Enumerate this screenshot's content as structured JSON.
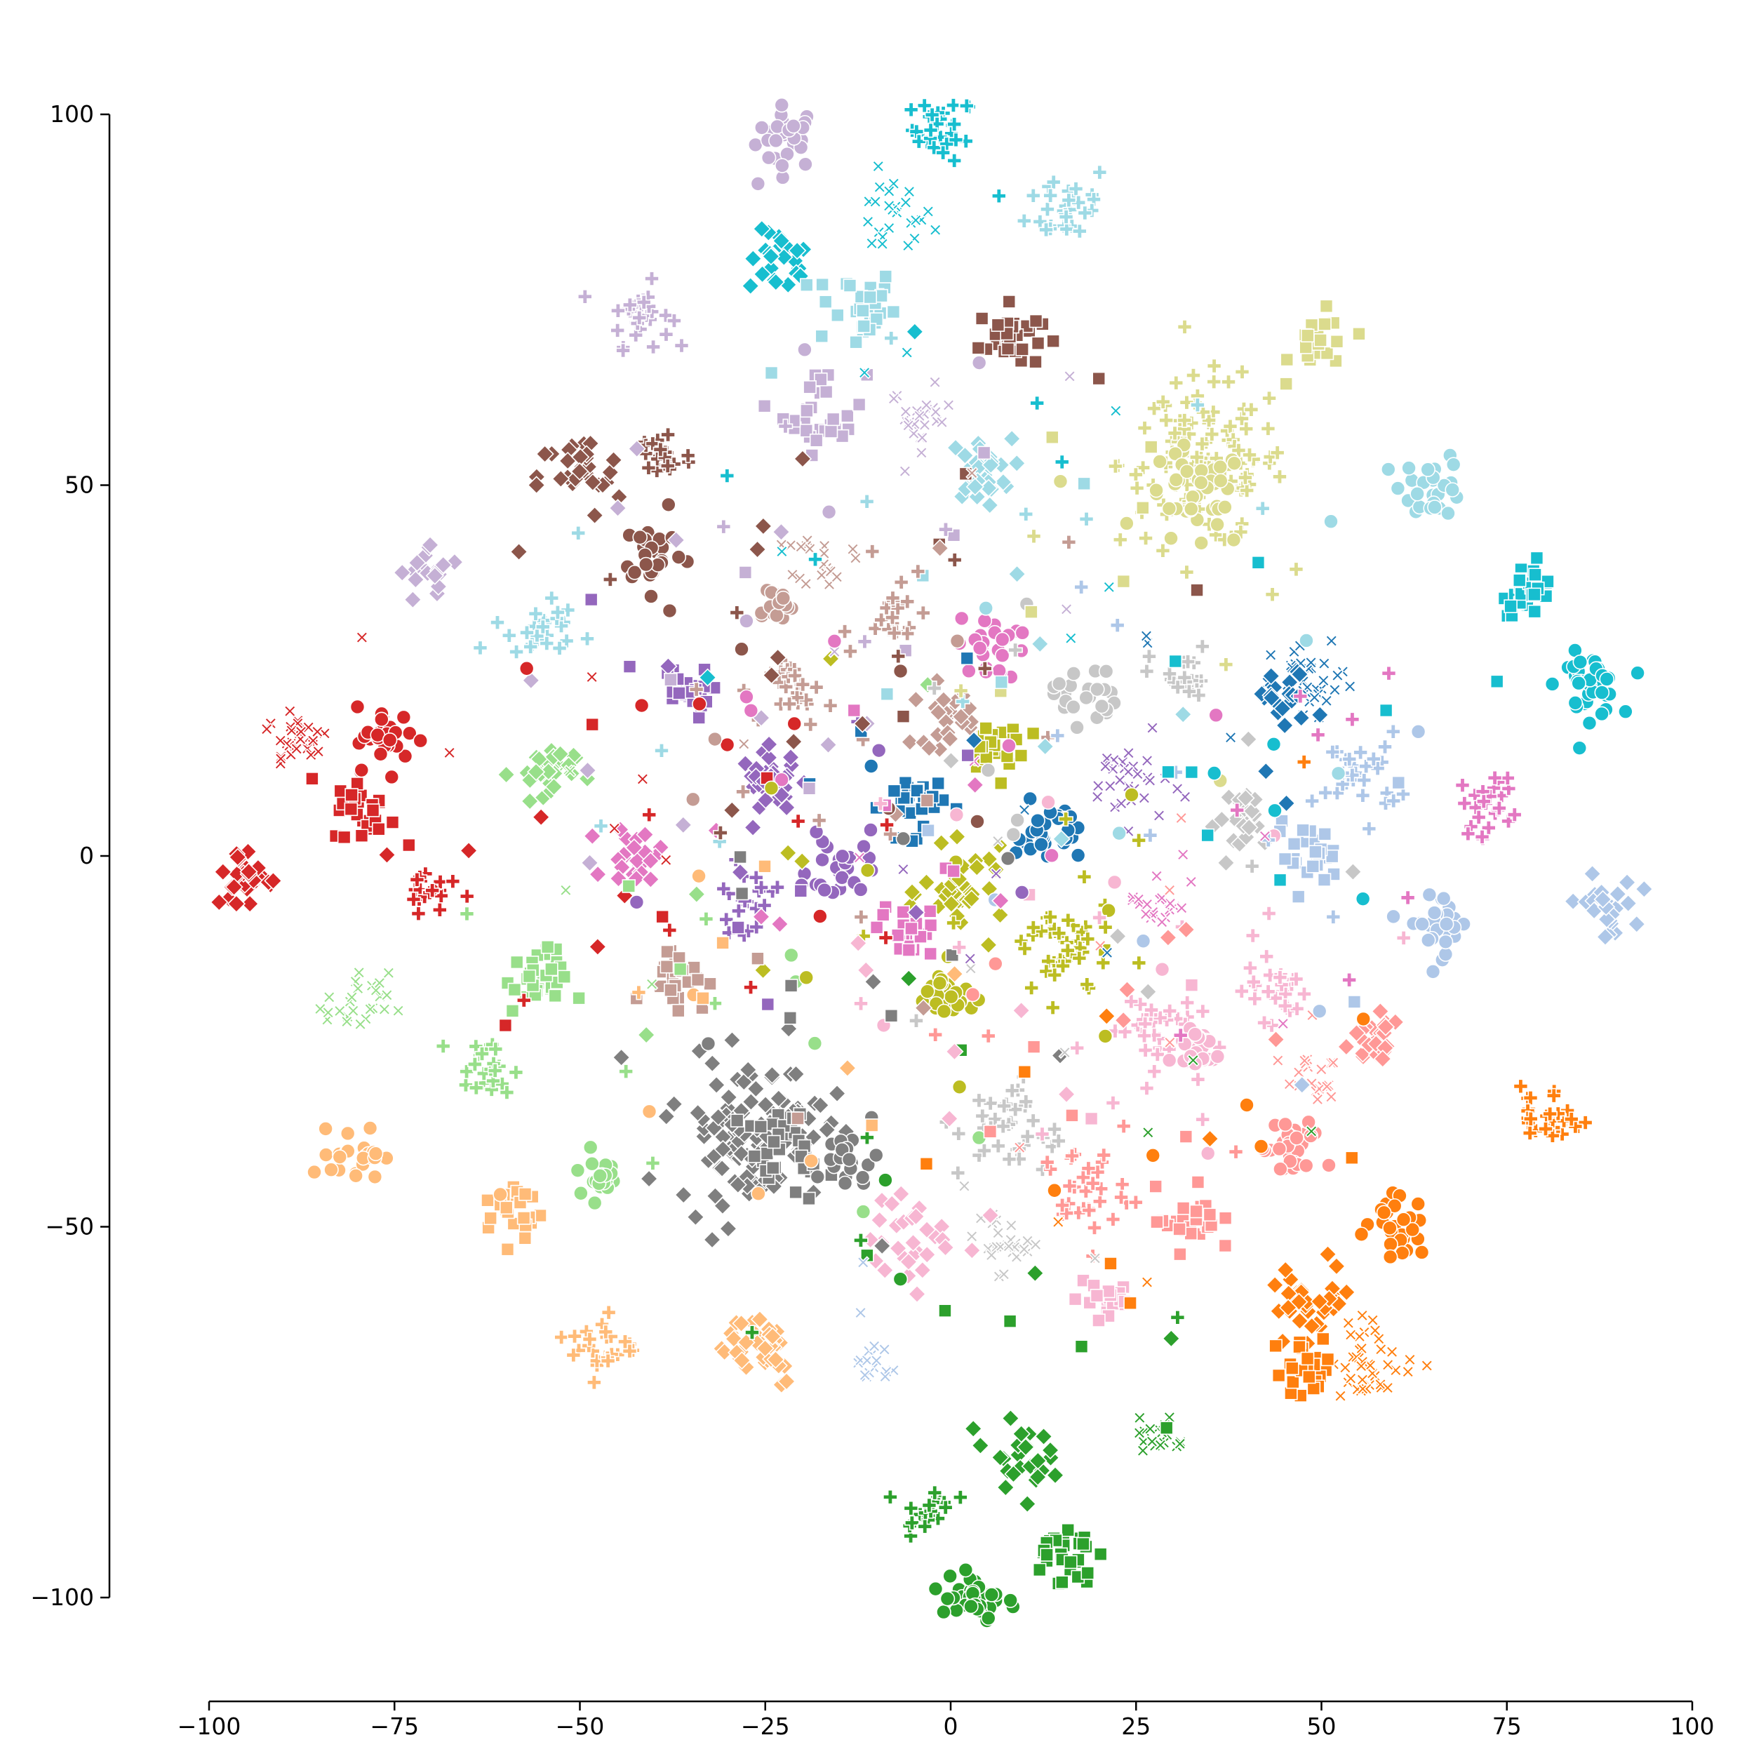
{
  "chart_data": {
    "type": "scatter",
    "title": "",
    "xlabel": "",
    "ylabel": "",
    "xlim": [
      -100,
      100
    ],
    "ylim": [
      -100,
      100
    ],
    "x_ticks": [
      -100,
      -75,
      -50,
      -25,
      0,
      25,
      50,
      75,
      100
    ],
    "y_ticks": [
      100,
      50,
      0,
      -50,
      -100
    ],
    "x_tick_labels": [
      "−100",
      "−75",
      "−50",
      "−25",
      "0",
      "25",
      "50",
      "75",
      "100"
    ],
    "y_tick_labels": [
      "100",
      "50",
      "0",
      "−50",
      "−100"
    ],
    "grid": false,
    "legend": "none",
    "marker_shapes": [
      "circle",
      "square",
      "diamond",
      "plus",
      "x"
    ],
    "palette": {
      "blue": "#1f77b4",
      "light_blue": "#aec7e8",
      "orange": "#ff7f0e",
      "light_orange": "#ffbb78",
      "green": "#2ca02c",
      "light_green": "#98df8a",
      "red": "#d62728",
      "light_red": "#ff9896",
      "purple": "#9467bd",
      "light_purple": "#c5b0d5",
      "brown": "#8c564b",
      "light_brown": "#c49c94",
      "pink": "#e377c2",
      "light_pink": "#f7b6d2",
      "gray": "#7f7f7f",
      "light_gray": "#c7c7c7",
      "olive": "#bcbd22",
      "light_olive": "#dbdb8d",
      "cyan": "#17becf",
      "light_cyan": "#9edae5"
    },
    "clusters": [
      {
        "x": -22,
        "y": 97,
        "spread": 3,
        "n": 30,
        "color": "#c5b0d5",
        "shape": "circle"
      },
      {
        "x": -1,
        "y": 98,
        "spread": 3,
        "n": 30,
        "color": "#17becf",
        "shape": "plus"
      },
      {
        "x": -8,
        "y": 86,
        "spread": 4,
        "n": 25,
        "color": "#17becf",
        "shape": "x"
      },
      {
        "x": -23,
        "y": 80,
        "spread": 3,
        "n": 25,
        "color": "#17becf",
        "shape": "diamond"
      },
      {
        "x": -13,
        "y": 74,
        "spread": 4,
        "n": 30,
        "color": "#9edae5",
        "shape": "square"
      },
      {
        "x": 16,
        "y": 88,
        "spread": 4,
        "n": 30,
        "color": "#9edae5",
        "shape": "plus"
      },
      {
        "x": -42,
        "y": 73,
        "spread": 3,
        "n": 30,
        "color": "#c5b0d5",
        "shape": "plus"
      },
      {
        "x": 8,
        "y": 70,
        "spread": 3,
        "n": 30,
        "color": "#8c564b",
        "shape": "square"
      },
      {
        "x": -17,
        "y": 60,
        "spread": 4,
        "n": 30,
        "color": "#c5b0d5",
        "shape": "square"
      },
      {
        "x": -4,
        "y": 59,
        "spread": 3,
        "n": 25,
        "color": "#c5b0d5",
        "shape": "x"
      },
      {
        "x": 34,
        "y": 53,
        "spread": 8,
        "n": 110,
        "color": "#dbdb8d",
        "shape": "plus"
      },
      {
        "x": 33,
        "y": 48,
        "spread": 5,
        "n": 40,
        "color": "#dbdb8d",
        "shape": "circle"
      },
      {
        "x": 50,
        "y": 69,
        "spread": 3,
        "n": 20,
        "color": "#dbdb8d",
        "shape": "square"
      },
      {
        "x": 65,
        "y": 50,
        "spread": 3,
        "n": 30,
        "color": "#9edae5",
        "shape": "circle"
      },
      {
        "x": 78,
        "y": 36,
        "spread": 2.5,
        "n": 30,
        "color": "#17becf",
        "shape": "square"
      },
      {
        "x": 86,
        "y": 23,
        "spread": 3,
        "n": 35,
        "color": "#17becf",
        "shape": "circle"
      },
      {
        "x": 4,
        "y": 52,
        "spread": 3,
        "n": 30,
        "color": "#9edae5",
        "shape": "diamond"
      },
      {
        "x": -50,
        "y": 51,
        "spread": 4,
        "n": 30,
        "color": "#8c564b",
        "shape": "diamond"
      },
      {
        "x": -39,
        "y": 54,
        "spread": 3,
        "n": 25,
        "color": "#8c564b",
        "shape": "plus"
      },
      {
        "x": -40,
        "y": 41,
        "spread": 3,
        "n": 25,
        "color": "#8c564b",
        "shape": "circle"
      },
      {
        "x": -70,
        "y": 38,
        "spread": 3,
        "n": 20,
        "color": "#c5b0d5",
        "shape": "diamond"
      },
      {
        "x": -55,
        "y": 31,
        "spread": 3,
        "n": 25,
        "color": "#9edae5",
        "shape": "plus"
      },
      {
        "x": -17,
        "y": 40,
        "spread": 2.5,
        "n": 20,
        "color": "#c49c94",
        "shape": "x"
      },
      {
        "x": -24,
        "y": 34,
        "spread": 2,
        "n": 15,
        "color": "#c49c94",
        "shape": "circle"
      },
      {
        "x": -8,
        "y": 32,
        "spread": 3,
        "n": 20,
        "color": "#c49c94",
        "shape": "plus"
      },
      {
        "x": -36,
        "y": 22,
        "spread": 2.5,
        "n": 20,
        "color": "#9467bd",
        "shape": "square"
      },
      {
        "x": 5,
        "y": 28,
        "spread": 3,
        "n": 25,
        "color": "#e377c2",
        "shape": "circle"
      },
      {
        "x": 18,
        "y": 22,
        "spread": 3,
        "n": 25,
        "color": "#c7c7c7",
        "shape": "circle"
      },
      {
        "x": 31,
        "y": 24,
        "spread": 3,
        "n": 20,
        "color": "#c7c7c7",
        "shape": "plus"
      },
      {
        "x": 49,
        "y": 23,
        "spread": 4,
        "n": 30,
        "color": "#1f77b4",
        "shape": "x"
      },
      {
        "x": 45,
        "y": 21,
        "spread": 3,
        "n": 20,
        "color": "#1f77b4",
        "shape": "diamond"
      },
      {
        "x": 55,
        "y": 11,
        "spread": 4,
        "n": 30,
        "color": "#aec7e8",
        "shape": "plus"
      },
      {
        "x": 73,
        "y": 7,
        "spread": 3,
        "n": 25,
        "color": "#e377c2",
        "shape": "plus"
      },
      {
        "x": 88,
        "y": -7,
        "spread": 3,
        "n": 25,
        "color": "#aec7e8",
        "shape": "diamond"
      },
      {
        "x": 66,
        "y": -9,
        "spread": 3,
        "n": 30,
        "color": "#aec7e8",
        "shape": "circle"
      },
      {
        "x": 48,
        "y": 0,
        "spread": 3,
        "n": 25,
        "color": "#aec7e8",
        "shape": "square"
      },
      {
        "x": 40,
        "y": 5,
        "spread": 3,
        "n": 25,
        "color": "#c7c7c7",
        "shape": "diamond"
      },
      {
        "x": -20,
        "y": 22,
        "spread": 3,
        "n": 25,
        "color": "#c49c94",
        "shape": "plus"
      },
      {
        "x": -1,
        "y": 19,
        "spread": 3,
        "n": 25,
        "color": "#c49c94",
        "shape": "diamond"
      },
      {
        "x": -24,
        "y": 10,
        "spread": 3,
        "n": 30,
        "color": "#9467bd",
        "shape": "diamond"
      },
      {
        "x": -5,
        "y": 7,
        "spread": 3,
        "n": 30,
        "color": "#1f77b4",
        "shape": "square"
      },
      {
        "x": 13,
        "y": 3,
        "spread": 3,
        "n": 30,
        "color": "#1f77b4",
        "shape": "circle"
      },
      {
        "x": 24,
        "y": 10,
        "spread": 4,
        "n": 30,
        "color": "#9467bd",
        "shape": "x"
      },
      {
        "x": 6,
        "y": 15,
        "spread": 3,
        "n": 20,
        "color": "#bcbd22",
        "shape": "square"
      },
      {
        "x": 2,
        "y": -5,
        "spread": 4,
        "n": 35,
        "color": "#bcbd22",
        "shape": "diamond"
      },
      {
        "x": 15,
        "y": -13,
        "spread": 5,
        "n": 40,
        "color": "#bcbd22",
        "shape": "plus"
      },
      {
        "x": -1,
        "y": -19,
        "spread": 3,
        "n": 25,
        "color": "#bcbd22",
        "shape": "circle"
      },
      {
        "x": -15,
        "y": -2,
        "spread": 3,
        "n": 25,
        "color": "#9467bd",
        "shape": "circle"
      },
      {
        "x": -28,
        "y": -6,
        "spread": 3,
        "n": 20,
        "color": "#9467bd",
        "shape": "plus"
      },
      {
        "x": -42,
        "y": 0,
        "spread": 3,
        "n": 25,
        "color": "#e377c2",
        "shape": "diamond"
      },
      {
        "x": -6,
        "y": -10,
        "spread": 2.5,
        "n": 20,
        "color": "#e377c2",
        "shape": "square"
      },
      {
        "x": 28,
        "y": -6,
        "spread": 3,
        "n": 20,
        "color": "#e377c2",
        "shape": "x"
      },
      {
        "x": -37,
        "y": -16,
        "spread": 3,
        "n": 25,
        "color": "#c49c94",
        "shape": "square"
      },
      {
        "x": -55,
        "y": 11,
        "spread": 3,
        "n": 30,
        "color": "#98df8a",
        "shape": "diamond"
      },
      {
        "x": -56,
        "y": -17,
        "spread": 3,
        "n": 30,
        "color": "#98df8a",
        "shape": "square"
      },
      {
        "x": -80,
        "y": -20,
        "spread": 3,
        "n": 25,
        "color": "#98df8a",
        "shape": "x"
      },
      {
        "x": -63,
        "y": -29,
        "spread": 3,
        "n": 25,
        "color": "#98df8a",
        "shape": "plus"
      },
      {
        "x": -47,
        "y": -43,
        "spread": 2.5,
        "n": 20,
        "color": "#98df8a",
        "shape": "circle"
      },
      {
        "x": -80,
        "y": -40,
        "spread": 2.5,
        "n": 25,
        "color": "#ffbb78",
        "shape": "circle"
      },
      {
        "x": -59,
        "y": -48,
        "spread": 3,
        "n": 25,
        "color": "#ffbb78",
        "shape": "square"
      },
      {
        "x": -47,
        "y": -66,
        "spread": 3,
        "n": 25,
        "color": "#ffbb78",
        "shape": "plus"
      },
      {
        "x": -26,
        "y": -66,
        "spread": 4,
        "n": 35,
        "color": "#ffbb78",
        "shape": "diamond"
      },
      {
        "x": -88,
        "y": 16,
        "spread": 3,
        "n": 30,
        "color": "#d62728",
        "shape": "x"
      },
      {
        "x": -76,
        "y": 16,
        "spread": 3,
        "n": 30,
        "color": "#d62728",
        "shape": "circle"
      },
      {
        "x": -79,
        "y": 6,
        "spread": 3,
        "n": 25,
        "color": "#d62728",
        "shape": "square"
      },
      {
        "x": -95,
        "y": -3,
        "spread": 3,
        "n": 30,
        "color": "#d62728",
        "shape": "diamond"
      },
      {
        "x": -70,
        "y": -4,
        "spread": 2.5,
        "n": 20,
        "color": "#d62728",
        "shape": "plus"
      },
      {
        "x": -27,
        "y": -37,
        "spread": 7,
        "n": 120,
        "color": "#7f7f7f",
        "shape": "diamond"
      },
      {
        "x": -22,
        "y": -40,
        "spread": 4,
        "n": 30,
        "color": "#7f7f7f",
        "shape": "square"
      },
      {
        "x": -14,
        "y": -41,
        "spread": 3,
        "n": 20,
        "color": "#7f7f7f",
        "shape": "circle"
      },
      {
        "x": 8,
        "y": -37,
        "spread": 5,
        "n": 35,
        "color": "#c7c7c7",
        "shape": "plus"
      },
      {
        "x": 18,
        "y": -45,
        "spread": 4,
        "n": 30,
        "color": "#ff9896",
        "shape": "plus"
      },
      {
        "x": 6,
        "y": -52,
        "spread": 3,
        "n": 25,
        "color": "#c7c7c7",
        "shape": "x"
      },
      {
        "x": -5,
        "y": -52,
        "spread": 4,
        "n": 30,
        "color": "#f7b6d2",
        "shape": "diamond"
      },
      {
        "x": 21,
        "y": -60,
        "spread": 3,
        "n": 20,
        "color": "#f7b6d2",
        "shape": "square"
      },
      {
        "x": 27,
        "y": -23,
        "spread": 4,
        "n": 35,
        "color": "#f7b6d2",
        "shape": "plus"
      },
      {
        "x": 33,
        "y": -26,
        "spread": 2.5,
        "n": 25,
        "color": "#f7b6d2",
        "shape": "circle"
      },
      {
        "x": 44,
        "y": -18,
        "spread": 3,
        "n": 25,
        "color": "#f7b6d2",
        "shape": "plus"
      },
      {
        "x": 57,
        "y": -25,
        "spread": 3,
        "n": 25,
        "color": "#ff9896",
        "shape": "diamond"
      },
      {
        "x": 48,
        "y": -29,
        "spread": 3,
        "n": 20,
        "color": "#ff9896",
        "shape": "x"
      },
      {
        "x": 46,
        "y": -40,
        "spread": 3,
        "n": 30,
        "color": "#ff9896",
        "shape": "circle"
      },
      {
        "x": 32,
        "y": -49,
        "spread": 3,
        "n": 25,
        "color": "#ff9896",
        "shape": "square"
      },
      {
        "x": 81,
        "y": -35,
        "spread": 3,
        "n": 30,
        "color": "#ff7f0e",
        "shape": "plus"
      },
      {
        "x": 60,
        "y": -50,
        "spread": 3,
        "n": 30,
        "color": "#ff7f0e",
        "shape": "circle"
      },
      {
        "x": 49,
        "y": -60,
        "spread": 4,
        "n": 35,
        "color": "#ff7f0e",
        "shape": "diamond"
      },
      {
        "x": 57,
        "y": -68,
        "spread": 4,
        "n": 40,
        "color": "#ff7f0e",
        "shape": "x"
      },
      {
        "x": 48,
        "y": -69,
        "spread": 3,
        "n": 25,
        "color": "#ff7f0e",
        "shape": "square"
      },
      {
        "x": 28,
        "y": -78,
        "spread": 2.5,
        "n": 20,
        "color": "#2ca02c",
        "shape": "x"
      },
      {
        "x": 9,
        "y": -81,
        "spread": 3,
        "n": 25,
        "color": "#2ca02c",
        "shape": "diamond"
      },
      {
        "x": -3,
        "y": -88,
        "spread": 2.5,
        "n": 20,
        "color": "#2ca02c",
        "shape": "plus"
      },
      {
        "x": 15,
        "y": -94,
        "spread": 3,
        "n": 30,
        "color": "#2ca02c",
        "shape": "square"
      },
      {
        "x": 3,
        "y": -100,
        "spread": 3,
        "n": 35,
        "color": "#2ca02c",
        "shape": "circle"
      },
      {
        "x": -10,
        "y": -69,
        "spread": 2,
        "n": 15,
        "color": "#aec7e8",
        "shape": "x"
      }
    ]
  }
}
